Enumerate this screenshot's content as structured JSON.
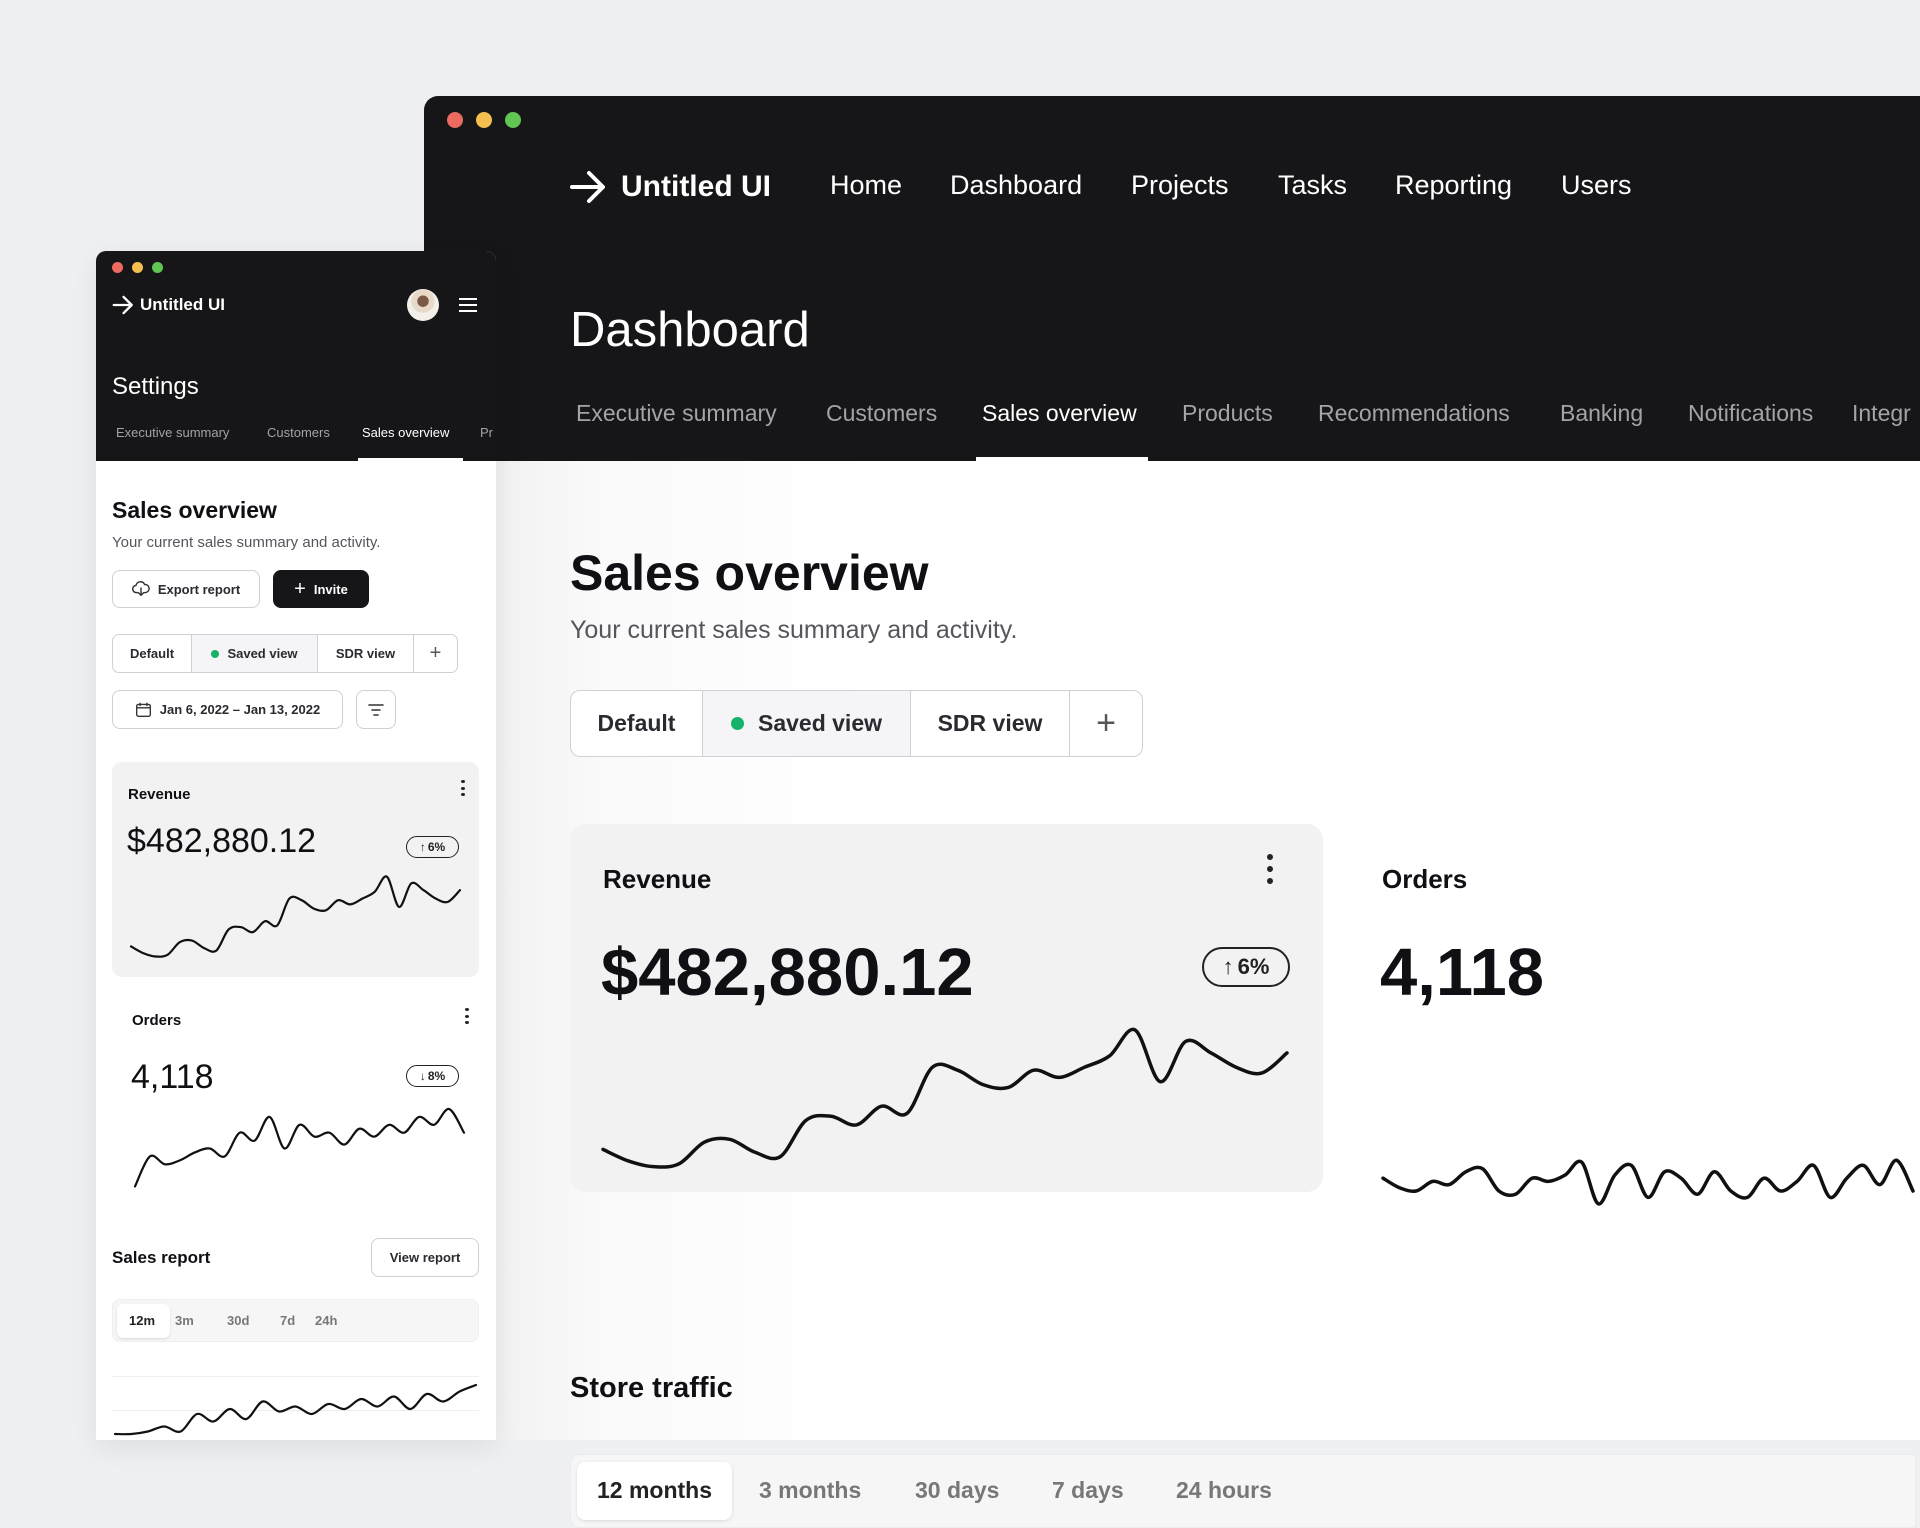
{
  "main_window": {
    "brand": "Untitled UI",
    "nav": [
      "Home",
      "Dashboard",
      "Projects",
      "Tasks",
      "Reporting",
      "Users"
    ],
    "page_title": "Dashboard",
    "tabs": [
      "Executive summary",
      "Customers",
      "Sales overview",
      "Products",
      "Recommendations",
      "Banking",
      "Notifications",
      "Integr"
    ],
    "active_tab": "Sales overview",
    "section_title": "Sales overview",
    "section_subtitle": "Your current sales summary and activity.",
    "views": [
      "Default",
      "Saved view",
      "SDR view"
    ],
    "add_view_icon": "plus-icon",
    "revenue": {
      "label": "Revenue",
      "value": "$482,880.12",
      "change": "6%",
      "direction": "up"
    },
    "orders": {
      "label": "Orders",
      "value": "4,118"
    },
    "store_traffic": {
      "title": "Store traffic",
      "ranges": [
        "12 months",
        "3 months",
        "30 days",
        "7 days",
        "24 hours"
      ],
      "active": "12 months"
    }
  },
  "mobile_window": {
    "brand": "Untitled UI",
    "page_title": "Settings",
    "tabs": [
      "Executive summary",
      "Customers",
      "Sales overview",
      "Pr"
    ],
    "active_tab": "Sales overview",
    "section_title": "Sales overview",
    "section_subtitle": "Your current sales summary and activity.",
    "export_label": "Export report",
    "invite_label": "Invite",
    "views": [
      "Default",
      "Saved view",
      "SDR view"
    ],
    "date_range": "Jan 6, 2022 – Jan 13, 2022",
    "revenue": {
      "label": "Revenue",
      "value": "$482,880.12",
      "change": "6%",
      "direction": "up"
    },
    "orders": {
      "label": "Orders",
      "value": "4,118",
      "change": "8%",
      "direction": "down"
    },
    "sales_report": {
      "title": "Sales report",
      "view_label": "View report",
      "ranges": [
        "12m",
        "3m",
        "30d",
        "7d",
        "24h"
      ],
      "active": "12m"
    }
  },
  "colors": {
    "header": "#161618",
    "accent_green": "#17b26a",
    "card": "#f2f2f3",
    "background": "#eff0f2"
  }
}
